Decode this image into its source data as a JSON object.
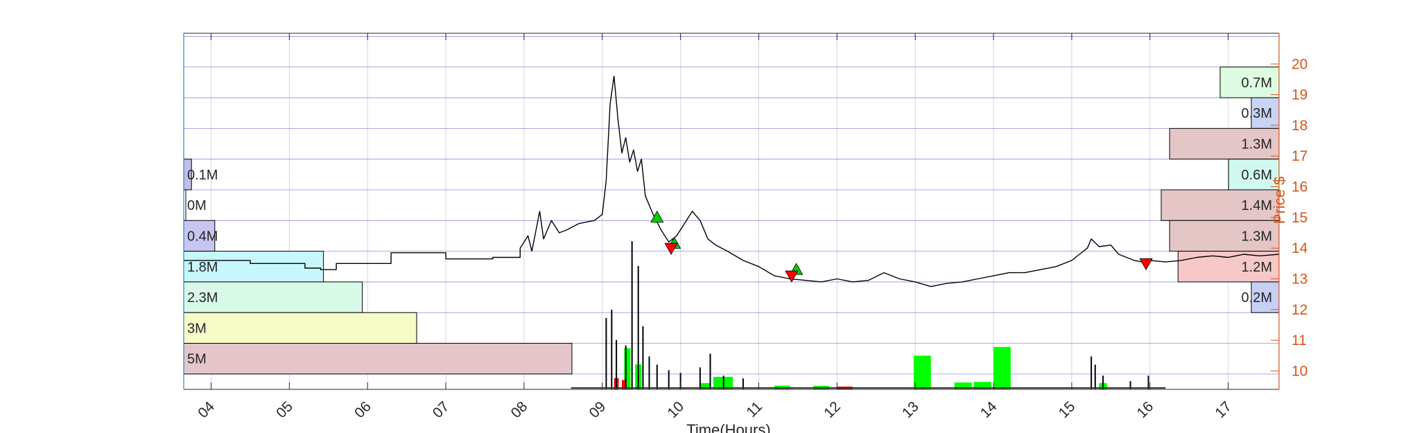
{
  "chart_data": {
    "type": "line",
    "title": "",
    "xlabel": "Time(Hours)",
    "ylabel_right": "Price $",
    "xlim": [
      3.65,
      17.65
    ],
    "ylim": [
      9.4,
      21.0
    ],
    "x_ticks": [
      4,
      5,
      6,
      7,
      8,
      9,
      10,
      11,
      12,
      13,
      14,
      15,
      16,
      17
    ],
    "x_tick_labels": [
      "04",
      "05",
      "06",
      "07",
      "08",
      "09",
      "10",
      "11",
      "12",
      "13",
      "14",
      "15",
      "16",
      "17"
    ],
    "y_ticks": [
      10,
      11,
      12,
      13,
      14,
      15,
      16,
      17,
      18,
      19,
      20
    ],
    "y_tick_labels": [
      "10",
      "11",
      "12",
      "13",
      "14",
      "15",
      "16",
      "17",
      "18",
      "19",
      "20"
    ],
    "grid": true,
    "colors": {
      "price_line": "#000000",
      "axis_right": "#d95319",
      "grid_horizontal": "#2f2fd8",
      "grid_vertical": "#d7d7d7",
      "volume_up": "#00ff00",
      "volume_down": "#ff0000",
      "volume_trades": "#000000",
      "buy_marker": "#00cc00",
      "sell_marker": "#ff0000"
    },
    "price_series": {
      "name": "",
      "x": [
        3.65,
        4.2,
        4.5,
        4.5,
        5.2,
        5.2,
        5.4,
        5.4,
        5.6,
        5.6,
        6.3,
        6.3,
        7.0,
        7.0,
        7.6,
        7.6,
        7.95,
        7.95,
        8.05,
        8.1,
        8.2,
        8.25,
        8.35,
        8.45,
        8.55,
        8.7,
        8.9,
        9.0,
        9.05,
        9.1,
        9.15,
        9.2,
        9.25,
        9.3,
        9.35,
        9.4,
        9.45,
        9.5,
        9.55,
        9.65,
        9.75,
        9.85,
        9.95,
        10.05,
        10.15,
        10.25,
        10.35,
        10.45,
        10.6,
        10.8,
        11.0,
        11.2,
        11.4,
        11.6,
        11.8,
        12.0,
        12.2,
        12.4,
        12.6,
        12.8,
        13.0,
        13.2,
        13.4,
        13.6,
        13.8,
        14.0,
        14.2,
        14.4,
        14.6,
        14.8,
        15.0,
        15.1,
        15.2,
        15.25,
        15.35,
        15.5,
        15.6,
        15.7,
        15.8,
        15.9,
        16.0,
        16.2,
        16.4,
        16.6,
        16.8,
        17.0,
        17.2,
        17.4,
        17.65
      ],
      "y": [
        13.6,
        13.6,
        13.6,
        13.5,
        13.5,
        13.35,
        13.35,
        13.3,
        13.3,
        13.5,
        13.5,
        13.85,
        13.85,
        13.65,
        13.65,
        13.7,
        13.7,
        14.0,
        14.4,
        13.9,
        15.2,
        14.3,
        14.9,
        14.5,
        14.6,
        14.8,
        14.9,
        15.1,
        16.2,
        18.7,
        19.6,
        18.2,
        17.1,
        17.6,
        16.8,
        17.2,
        16.5,
        16.9,
        15.7,
        15.1,
        14.6,
        14.2,
        14.4,
        14.8,
        15.2,
        14.9,
        14.3,
        14.1,
        13.9,
        13.6,
        13.4,
        13.1,
        13.0,
        12.95,
        12.9,
        13.0,
        12.9,
        12.95,
        13.2,
        13.0,
        12.9,
        12.75,
        12.85,
        12.9,
        13.0,
        13.1,
        13.2,
        13.2,
        13.3,
        13.4,
        13.6,
        13.8,
        14.0,
        14.3,
        14.05,
        14.1,
        13.8,
        13.7,
        13.6,
        13.55,
        13.6,
        13.55,
        13.6,
        13.7,
        13.75,
        13.7,
        13.8,
        13.75,
        13.8
      ]
    },
    "buy_markers": [
      {
        "x": 9.7,
        "y": 15.0
      },
      {
        "x": 9.92,
        "y": 14.15
      },
      {
        "x": 11.48,
        "y": 13.3
      }
    ],
    "sell_markers": [
      {
        "x": 9.88,
        "y": 14.0
      },
      {
        "x": 11.42,
        "y": 13.1
      },
      {
        "x": 15.95,
        "y": 13.5
      }
    ],
    "volume_profile_left": [
      {
        "label": "0.1M",
        "price_from": 15.9,
        "price_to": 16.9,
        "value": 0.1,
        "color": "#bfbfe6"
      },
      {
        "label": "0M",
        "price_from": 14.9,
        "price_to": 15.9,
        "value": 0.0,
        "color": "#ffffff"
      },
      {
        "label": "0.4M",
        "price_from": 13.9,
        "price_to": 14.9,
        "value": 0.4,
        "color": "#c6c6f0"
      },
      {
        "label": "1.8M",
        "price_from": 12.9,
        "price_to": 13.9,
        "value": 1.8,
        "color": "#c6f7fb"
      },
      {
        "label": "2.3M",
        "price_from": 11.9,
        "price_to": 12.9,
        "value": 2.3,
        "color": "#d8f8e8"
      },
      {
        "label": "3M",
        "price_from": 10.9,
        "price_to": 11.9,
        "value": 3.0,
        "color": "#f6fbc8"
      },
      {
        "label": "5M",
        "price_from": 9.9,
        "price_to": 10.9,
        "value": 5.0,
        "color": "#e4c6ca"
      }
    ],
    "volume_profile_right": [
      {
        "label": "0.7M",
        "price_from": 18.9,
        "price_to": 19.9,
        "value": 0.7,
        "color": "#ddfbe0"
      },
      {
        "label": "0.3M",
        "price_from": 17.9,
        "price_to": 18.9,
        "value": 0.3,
        "color": "#c8d3f4"
      },
      {
        "label": "1.3M",
        "price_from": 16.9,
        "price_to": 17.9,
        "value": 1.3,
        "color": "#e4c6c6"
      },
      {
        "label": "0.6M",
        "price_from": 15.9,
        "price_to": 16.9,
        "value": 0.6,
        "color": "#cff8ee"
      },
      {
        "label": "1.4M",
        "price_from": 14.9,
        "price_to": 15.9,
        "value": 1.4,
        "color": "#e4c6c6"
      },
      {
        "label": "1.3M",
        "price_from": 13.9,
        "price_to": 14.9,
        "value": 1.3,
        "color": "#e4c6c6"
      },
      {
        "label": "1.2M",
        "price_from": 12.9,
        "price_to": 13.9,
        "value": 1.2,
        "color": "#f6c8c8"
      },
      {
        "label": "0.2M",
        "price_from": 11.9,
        "price_to": 12.9,
        "value": 0.2,
        "color": "#c6cff4"
      }
    ],
    "volume_profile_scale_max": 5.0,
    "volume_bars": [
      {
        "x": 9.28,
        "width": 0.08,
        "value": 3.3,
        "color": "#00ff00"
      },
      {
        "x": 9.42,
        "width": 0.08,
        "value": 2.0,
        "color": "#00ff00"
      },
      {
        "x": 10.42,
        "width": 0.25,
        "value": 1.0,
        "color": "#00ff00"
      },
      {
        "x": 10.25,
        "width": 0.12,
        "value": 0.5,
        "color": "#00ff00"
      },
      {
        "x": 11.2,
        "width": 0.2,
        "value": 0.3,
        "color": "#00ff00"
      },
      {
        "x": 11.7,
        "width": 0.2,
        "value": 0.28,
        "color": "#00ff00"
      },
      {
        "x": 12.0,
        "width": 0.2,
        "value": 0.22,
        "color": "#ff0000"
      },
      {
        "x": 12.98,
        "width": 0.22,
        "value": 2.7,
        "color": "#00ff00"
      },
      {
        "x": 13.5,
        "width": 0.22,
        "value": 0.55,
        "color": "#00ff00"
      },
      {
        "x": 13.75,
        "width": 0.22,
        "value": 0.6,
        "color": "#00ff00"
      },
      {
        "x": 14.0,
        "width": 0.22,
        "value": 3.4,
        "color": "#00ff00"
      },
      {
        "x": 15.35,
        "width": 0.1,
        "value": 0.5,
        "color": "#00ff00"
      },
      {
        "x": 9.15,
        "width": 0.06,
        "value": 0.9,
        "color": "#ff0000"
      },
      {
        "x": 9.25,
        "width": 0.06,
        "value": 0.75,
        "color": "#ff0000"
      }
    ],
    "volume_trade_spikes": [
      {
        "x": 9.05,
        "value": 2.6
      },
      {
        "x": 9.12,
        "value": 2.9
      },
      {
        "x": 9.18,
        "value": 1.8
      },
      {
        "x": 9.3,
        "value": 1.6
      },
      {
        "x": 9.38,
        "value": 5.4
      },
      {
        "x": 9.46,
        "value": 4.5
      },
      {
        "x": 9.52,
        "value": 2.3
      },
      {
        "x": 9.6,
        "value": 1.2
      },
      {
        "x": 9.7,
        "value": 0.9
      },
      {
        "x": 9.85,
        "value": 0.7
      },
      {
        "x": 10.0,
        "value": 0.6
      },
      {
        "x": 10.25,
        "value": 0.8
      },
      {
        "x": 10.38,
        "value": 1.3
      },
      {
        "x": 10.55,
        "value": 0.5
      },
      {
        "x": 10.8,
        "value": 0.4
      },
      {
        "x": 15.25,
        "value": 1.2
      },
      {
        "x": 15.3,
        "value": 0.9
      },
      {
        "x": 15.4,
        "value": 0.5
      },
      {
        "x": 15.75,
        "value": 0.3
      },
      {
        "x": 15.98,
        "value": 0.5
      }
    ],
    "volume_scale_max": 20.0
  }
}
